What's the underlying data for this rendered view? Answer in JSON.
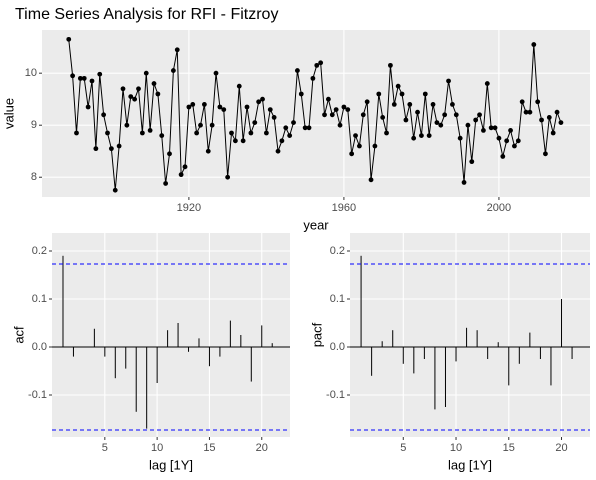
{
  "chart_data": [
    {
      "type": "line",
      "title": "Time Series Analysis for RFI - Fitzroy",
      "xlabel": "year",
      "ylabel": "value",
      "color": "#000000",
      "x": [
        1889,
        1890,
        1891,
        1892,
        1893,
        1894,
        1895,
        1896,
        1897,
        1898,
        1899,
        1900,
        1901,
        1902,
        1903,
        1904,
        1905,
        1906,
        1907,
        1908,
        1909,
        1910,
        1911,
        1912,
        1913,
        1914,
        1915,
        1916,
        1917,
        1918,
        1919,
        1920,
        1921,
        1922,
        1923,
        1924,
        1925,
        1926,
        1927,
        1928,
        1929,
        1930,
        1931,
        1932,
        1933,
        1934,
        1935,
        1936,
        1937,
        1938,
        1939,
        1940,
        1941,
        1942,
        1943,
        1944,
        1945,
        1946,
        1947,
        1948,
        1949,
        1950,
        1951,
        1952,
        1953,
        1954,
        1955,
        1956,
        1957,
        1958,
        1959,
        1960,
        1961,
        1962,
        1963,
        1964,
        1965,
        1966,
        1967,
        1968,
        1969,
        1970,
        1971,
        1972,
        1973,
        1974,
        1975,
        1976,
        1977,
        1978,
        1979,
        1980,
        1981,
        1982,
        1983,
        1984,
        1985,
        1986,
        1987,
        1988,
        1989,
        1990,
        1991,
        1992,
        1993,
        1994,
        1995,
        1996,
        1997,
        1998,
        1999,
        2000,
        2001,
        2002,
        2003,
        2004,
        2005,
        2006,
        2007,
        2008,
        2009,
        2010,
        2011,
        2012,
        2013,
        2014,
        2015,
        2016
      ],
      "values": [
        10.65,
        9.95,
        8.85,
        9.9,
        9.9,
        9.35,
        9.85,
        8.55,
        9.98,
        9.2,
        8.85,
        8.55,
        7.75,
        8.6,
        9.7,
        9.0,
        9.55,
        9.5,
        9.7,
        8.85,
        10.0,
        8.9,
        9.8,
        9.6,
        8.8,
        7.88,
        8.45,
        10.05,
        10.45,
        8.05,
        8.2,
        9.35,
        9.4,
        8.85,
        9.0,
        9.4,
        8.5,
        9.0,
        10.0,
        9.35,
        9.3,
        8.0,
        8.85,
        8.7,
        9.75,
        8.7,
        9.35,
        8.85,
        9.05,
        9.45,
        9.5,
        8.85,
        9.3,
        9.15,
        8.5,
        8.7,
        8.95,
        8.8,
        9.05,
        10.05,
        9.6,
        8.95,
        8.95,
        9.9,
        10.15,
        10.2,
        9.2,
        9.5,
        9.2,
        9.3,
        9.0,
        9.35,
        9.3,
        8.45,
        8.8,
        8.6,
        9.2,
        9.45,
        7.95,
        8.6,
        9.6,
        9.15,
        8.85,
        10.15,
        9.4,
        9.75,
        9.6,
        9.1,
        9.4,
        8.75,
        9.25,
        8.8,
        9.6,
        8.8,
        9.4,
        9.05,
        9.0,
        9.2,
        9.85,
        9.4,
        9.2,
        8.75,
        7.9,
        9.0,
        8.3,
        9.1,
        9.2,
        8.9,
        9.8,
        8.95,
        8.95,
        8.75,
        8.4,
        8.7,
        8.9,
        8.6,
        8.7,
        9.45,
        9.25,
        9.25,
        10.55,
        9.45,
        9.1,
        8.45,
        9.15,
        8.85,
        9.25,
        9.05
      ],
      "xlim": [
        1882.1,
        2023.5
      ],
      "ylim": [
        7.62,
        10.83
      ],
      "xticks": [
        1920,
        1960,
        2000
      ],
      "yticks": [
        8,
        9,
        10
      ],
      "grid": true
    },
    {
      "type": "bar",
      "xlabel": "lag [1Y]",
      "ylabel": "acf",
      "color": "#000000",
      "x": [
        1,
        2,
        3,
        4,
        5,
        6,
        7,
        8,
        9,
        10,
        11,
        12,
        13,
        14,
        15,
        16,
        17,
        18,
        19,
        20,
        21
      ],
      "values": [
        0.19,
        -0.02,
        0.0,
        0.038,
        -0.02,
        -0.065,
        -0.045,
        -0.135,
        -0.17,
        -0.075,
        0.035,
        0.05,
        -0.01,
        0.018,
        -0.04,
        -0.02,
        0.055,
        0.025,
        -0.072,
        0.045,
        0.008
      ],
      "threshold_lines": [
        0.173,
        -0.173
      ],
      "threshold_color": "#0000ff",
      "xlim": [
        -0.05,
        22.7
      ],
      "ylim": [
        -0.1875,
        0.2375
      ],
      "xticks": [
        5,
        10,
        15,
        20
      ],
      "yticks": [
        -0.1,
        {
          "value": 0,
          "label": "0.0"
        },
        0.1,
        0.2
      ],
      "grid": true
    },
    {
      "type": "bar",
      "xlabel": "lag [1Y]",
      "ylabel": "pacf",
      "color": "#000000",
      "x": [
        1,
        2,
        3,
        4,
        5,
        6,
        7,
        8,
        9,
        10,
        11,
        12,
        13,
        14,
        15,
        16,
        17,
        18,
        19,
        20,
        21
      ],
      "values": [
        0.19,
        -0.06,
        0.012,
        0.035,
        -0.035,
        -0.055,
        -0.025,
        -0.13,
        -0.125,
        -0.03,
        0.04,
        0.035,
        -0.025,
        0.01,
        -0.08,
        -0.035,
        0.03,
        -0.025,
        -0.08,
        0.1,
        -0.025
      ],
      "threshold_lines": [
        0.173,
        -0.173
      ],
      "threshold_color": "#0000ff",
      "xlim": [
        -0.05,
        22.7
      ],
      "ylim": [
        -0.1875,
        0.2375
      ],
      "xticks": [
        5,
        10,
        15,
        20
      ],
      "yticks": [
        -0.1,
        {
          "value": 0,
          "label": "0.0"
        },
        0.1,
        0.2
      ],
      "grid": true
    }
  ]
}
